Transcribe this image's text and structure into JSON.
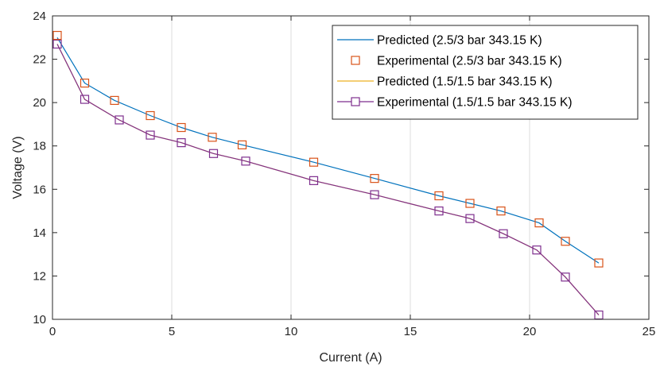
{
  "chart_data": {
    "type": "line",
    "title": "",
    "xlabel": "Current (A)",
    "ylabel": "Voltage (V)",
    "xlim": [
      0,
      25
    ],
    "ylim": [
      10,
      24
    ],
    "xticks": [
      0,
      5,
      10,
      15,
      20,
      25
    ],
    "yticks": [
      10,
      12,
      14,
      16,
      18,
      20,
      22,
      24
    ],
    "grid": "vertical-only",
    "legend_position": "top-right",
    "series": [
      {
        "name": "Predicted (2.5/3 bar 343.15 K)",
        "style": "line",
        "color": "#0072BD",
        "x": [
          0.2,
          1.35,
          2.6,
          4.1,
          5.4,
          6.7,
          7.95,
          10.95,
          13.5,
          16.2,
          17.5,
          18.8,
          20.4,
          21.5,
          22.9
        ],
        "y": [
          23.0,
          20.9,
          20.1,
          19.4,
          18.85,
          18.4,
          18.05,
          17.25,
          16.5,
          15.7,
          15.35,
          15.0,
          14.45,
          13.6,
          12.6
        ]
      },
      {
        "name": "Experimental (2.5/3 bar 343.15 K)",
        "style": "markers",
        "marker": "square",
        "color": "#D95319",
        "x": [
          0.2,
          1.35,
          2.6,
          4.1,
          5.4,
          6.7,
          7.95,
          10.95,
          13.5,
          16.2,
          17.5,
          18.8,
          20.4,
          21.5,
          22.9
        ],
        "y": [
          23.1,
          20.9,
          20.1,
          19.4,
          18.85,
          18.4,
          18.05,
          17.25,
          16.5,
          15.7,
          15.35,
          15.0,
          14.45,
          13.6,
          12.6
        ]
      },
      {
        "name": "Predicted (1.5/1.5 bar 343.15 K)",
        "style": "line",
        "color": "#EDB120",
        "x": [
          0.2,
          1.35,
          2.8,
          4.1,
          5.4,
          6.75,
          8.1,
          10.95,
          13.5,
          16.2,
          17.5,
          18.9,
          20.3,
          21.5,
          22.9
        ],
        "y": [
          22.7,
          20.15,
          19.2,
          18.5,
          18.15,
          17.65,
          17.3,
          16.4,
          15.75,
          15.0,
          14.65,
          13.95,
          13.2,
          11.95,
          10.2
        ]
      },
      {
        "name": "Experimental (1.5/1.5 bar 343.15 K)",
        "style": "line+markers",
        "marker": "square",
        "color": "#7E2F8E",
        "x": [
          0.2,
          1.35,
          2.8,
          4.1,
          5.4,
          6.75,
          8.1,
          10.95,
          13.5,
          16.2,
          17.5,
          18.9,
          20.3,
          21.5,
          22.9
        ],
        "y": [
          22.7,
          20.15,
          19.2,
          18.5,
          18.15,
          17.65,
          17.3,
          16.4,
          15.75,
          15.0,
          14.65,
          13.95,
          13.2,
          11.95,
          10.2
        ]
      }
    ]
  }
}
